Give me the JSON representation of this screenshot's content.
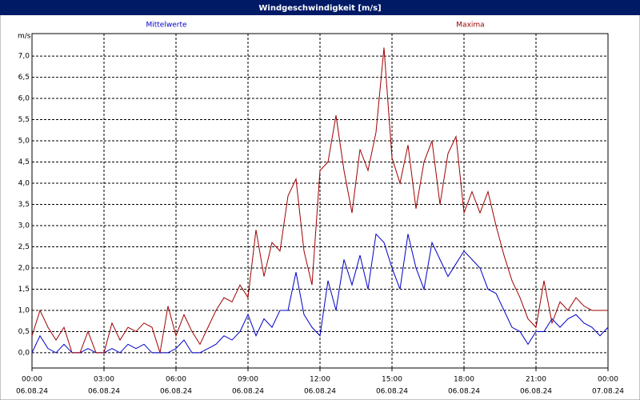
{
  "chart_data": {
    "type": "line",
    "title": "Windgeschwindigkeit [m/s]",
    "y_label": "m/s",
    "x": [
      0,
      20,
      40,
      60,
      80,
      100,
      120,
      140,
      160,
      180,
      200,
      220,
      240,
      260,
      280,
      300,
      320,
      340,
      360,
      380,
      400,
      420,
      440,
      460,
      480,
      500,
      520,
      540,
      560,
      580,
      600,
      620,
      640,
      660,
      680,
      700,
      720,
      740,
      760,
      780,
      800,
      820,
      840,
      860,
      880,
      900,
      920,
      940,
      960,
      980,
      1000,
      1020,
      1040,
      1060,
      1080,
      1100,
      1120,
      1140,
      1160,
      1180,
      1200,
      1220,
      1240,
      1260,
      1280,
      1300,
      1320,
      1340,
      1360,
      1380,
      1400,
      1420,
      1440
    ],
    "series": [
      {
        "name": "Mittelwerte",
        "color": "#0000c8",
        "values": [
          0.0,
          0.4,
          0.1,
          0,
          0.2,
          0,
          0,
          0.1,
          0,
          0,
          0.1,
          0,
          0.2,
          0.1,
          0.2,
          0,
          0,
          0,
          0.1,
          0.3,
          0,
          0,
          0.1,
          0.2,
          0.4,
          0.3,
          0.5,
          0.9,
          0.4,
          0.8,
          0.6,
          1.0,
          1.0,
          1.9,
          0.9,
          0.6,
          0.4,
          1.7,
          1.0,
          2.2,
          1.6,
          2.3,
          1.5,
          2.8,
          2.6,
          2.0,
          1.5,
          2.8,
          2.0,
          1.5,
          2.6,
          2.2,
          1.8,
          2.1,
          2.4,
          2.2,
          2.0,
          1.5,
          1.4,
          1.0,
          0.6,
          0.5,
          0.2,
          0.5,
          0.5,
          0.8,
          0.6,
          0.8,
          0.9,
          0.7,
          0.6,
          0.4,
          0.6
        ]
      },
      {
        "name": "Maxima",
        "color": "#a00000",
        "values": [
          0.4,
          1.0,
          0.6,
          0.3,
          0.6,
          0,
          0,
          0.5,
          0,
          0,
          0.7,
          0.3,
          0.6,
          0.5,
          0.7,
          0.6,
          0,
          1.1,
          0.4,
          0.9,
          0.5,
          0.2,
          0.6,
          1.0,
          1.3,
          1.2,
          1.6,
          1.3,
          2.9,
          1.8,
          2.6,
          2.4,
          3.7,
          4.1,
          2.4,
          1.6,
          4.3,
          4.5,
          5.6,
          4.3,
          3.3,
          4.8,
          4.3,
          5.2,
          7.2,
          4.6,
          4.0,
          4.9,
          3.4,
          4.5,
          5.0,
          3.5,
          4.7,
          5.1,
          3.3,
          3.8,
          3.3,
          3.8,
          3.0,
          2.3,
          1.7,
          1.3,
          0.8,
          0.6,
          1.7,
          0.7,
          1.2,
          1.0,
          1.3,
          1.1,
          1.0,
          1.0,
          1.0
        ]
      }
    ],
    "xlim": [
      0,
      1440
    ],
    "xticks": [
      {
        "value": 0,
        "label": [
          "00:00",
          "06.08.24"
        ]
      },
      {
        "value": 180,
        "label": [
          "03:00",
          "06.08.24"
        ]
      },
      {
        "value": 360,
        "label": [
          "06:00",
          "06.08.24"
        ]
      },
      {
        "value": 540,
        "label": [
          "09:00",
          "06.08.24"
        ]
      },
      {
        "value": 720,
        "label": [
          "12:00",
          "06.08.24"
        ]
      },
      {
        "value": 900,
        "label": [
          "15:00",
          "06.08.24"
        ]
      },
      {
        "value": 1080,
        "label": [
          "18:00",
          "06.08.24"
        ]
      },
      {
        "value": 1260,
        "label": [
          "21:00",
          "06.08.24"
        ]
      },
      {
        "value": 1440,
        "label": [
          "00:00",
          "07.08.24"
        ]
      }
    ],
    "ylim": [
      -0.36,
      7.53
    ],
    "yticks": [
      {
        "value": 0,
        "label": "0,0"
      },
      {
        "value": 0.5,
        "label": "0,5"
      },
      {
        "value": 1,
        "label": "1,0"
      },
      {
        "value": 1.5,
        "label": "1,5"
      },
      {
        "value": 2,
        "label": "2,0"
      },
      {
        "value": 2.5,
        "label": "2,5"
      },
      {
        "value": 3,
        "label": "3,0"
      },
      {
        "value": 3.5,
        "label": "3,5"
      },
      {
        "value": 4,
        "label": "4,0"
      },
      {
        "value": 4.5,
        "label": "4,5"
      },
      {
        "value": 5,
        "label": "5,0"
      },
      {
        "value": 5.5,
        "label": "5,5"
      },
      {
        "value": 6,
        "label": "6,0"
      },
      {
        "value": 6.5,
        "label": "6,5"
      },
      {
        "value": 7,
        "label": "7,0"
      }
    ],
    "grid": true
  }
}
